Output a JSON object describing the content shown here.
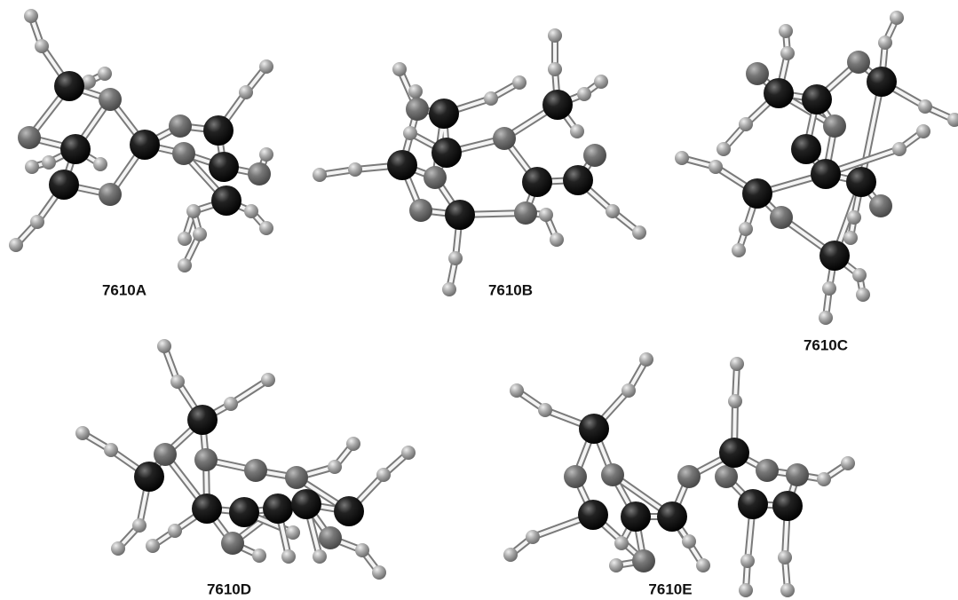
{
  "structures": [
    {
      "label": "7610A"
    },
    {
      "label": "7610B"
    },
    {
      "label": "7610C"
    },
    {
      "label": "7610D"
    },
    {
      "label": "7610E"
    }
  ]
}
